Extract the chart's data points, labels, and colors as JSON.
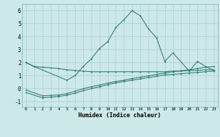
{
  "xlabel": "Humidex (Indice chaleur)",
  "background_color": "#cce8e8",
  "grid_color": "#aacccc",
  "line_color": "#2e7d72",
  "x_ticks": [
    0,
    1,
    2,
    3,
    4,
    5,
    6,
    7,
    8,
    9,
    10,
    11,
    12,
    13,
    14,
    15,
    16,
    17,
    18,
    19,
    20,
    21,
    22,
    23
  ],
  "ylim": [
    -1.4,
    6.5
  ],
  "xlim": [
    -0.5,
    23.5
  ],
  "yticks": [
    -1,
    0,
    1,
    2,
    3,
    4,
    5,
    6
  ],
  "peak_x": [
    0,
    1,
    5,
    6,
    7,
    8,
    9,
    10,
    11,
    12,
    13,
    14,
    15,
    16,
    17
  ],
  "peak_y": [
    2.0,
    1.7,
    0.65,
    1.0,
    1.7,
    2.3,
    3.1,
    3.6,
    4.7,
    5.3,
    6.0,
    5.6,
    4.6,
    3.9,
    2.1
  ],
  "cont_x": [
    17,
    18,
    20,
    21,
    22,
    23
  ],
  "cont_y": [
    2.1,
    2.75,
    1.35,
    2.1,
    1.7,
    1.4
  ],
  "sl1_x": [
    0,
    1,
    2,
    3,
    4,
    5,
    6,
    7,
    8,
    9,
    10,
    11,
    12,
    13,
    14,
    15,
    16,
    17,
    18,
    19,
    20,
    21,
    22,
    23
  ],
  "sl1_y": [
    2.0,
    1.7,
    1.65,
    1.6,
    1.55,
    1.45,
    1.4,
    1.35,
    1.3,
    1.3,
    1.3,
    1.3,
    1.3,
    1.3,
    1.3,
    1.3,
    1.3,
    1.3,
    1.35,
    1.35,
    1.4,
    1.4,
    1.45,
    1.45
  ],
  "sl2_x": [
    0,
    2,
    3,
    4,
    5,
    6,
    7,
    8,
    9,
    10,
    11,
    12,
    13,
    14,
    15,
    16,
    17,
    18,
    19,
    20,
    21,
    22,
    23
  ],
  "sl2_y": [
    -0.3,
    -0.7,
    -0.65,
    -0.6,
    -0.5,
    -0.35,
    -0.15,
    0.0,
    0.15,
    0.3,
    0.45,
    0.55,
    0.65,
    0.75,
    0.85,
    0.95,
    1.05,
    1.1,
    1.15,
    1.2,
    1.25,
    1.3,
    1.35
  ],
  "sl3_x": [
    0,
    2,
    3,
    4,
    5,
    6,
    7,
    8,
    9,
    10,
    11,
    12,
    13,
    14,
    15,
    16,
    17,
    18,
    19,
    20,
    21,
    22,
    23
  ],
  "sl3_y": [
    -0.1,
    -0.55,
    -0.52,
    -0.48,
    -0.38,
    -0.2,
    0.0,
    0.15,
    0.28,
    0.42,
    0.55,
    0.65,
    0.78,
    0.88,
    0.98,
    1.1,
    1.2,
    1.3,
    1.38,
    1.45,
    1.55,
    1.65,
    1.7
  ]
}
